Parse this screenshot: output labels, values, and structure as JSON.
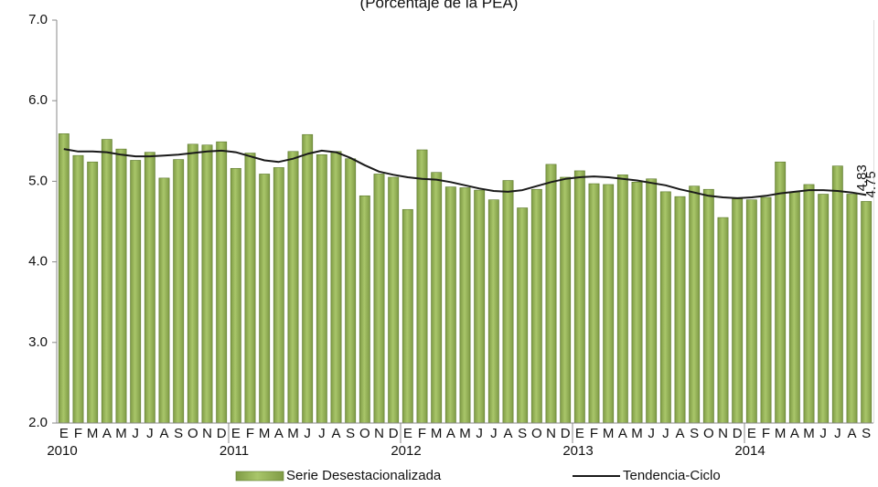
{
  "chart_data": {
    "type": "bar_line",
    "subtitle": "(Porcentaje de la PEA)",
    "categories": [
      "E",
      "F",
      "M",
      "A",
      "M",
      "J",
      "J",
      "A",
      "S",
      "O",
      "N",
      "D",
      "E",
      "F",
      "M",
      "A",
      "M",
      "J",
      "J",
      "A",
      "S",
      "O",
      "N",
      "D",
      "E",
      "F",
      "M",
      "A",
      "M",
      "J",
      "J",
      "A",
      "S",
      "O",
      "N",
      "D",
      "E",
      "F",
      "M",
      "A",
      "M",
      "J",
      "J",
      "A",
      "S",
      "O",
      "N",
      "D",
      "E",
      "F",
      "M",
      "A",
      "M",
      "J",
      "J",
      "A",
      "S"
    ],
    "years": [
      "2010",
      "2011",
      "2012",
      "2013",
      "2014"
    ],
    "series": [
      {
        "name": "Serie Desestacionalizada",
        "type": "bar",
        "color": "#9bbb59",
        "values": [
          5.59,
          5.32,
          5.24,
          5.52,
          5.4,
          5.26,
          5.36,
          5.04,
          5.27,
          5.46,
          5.45,
          5.49,
          5.16,
          5.35,
          5.09,
          5.17,
          5.37,
          5.58,
          5.33,
          5.37,
          5.28,
          4.82,
          5.09,
          5.05,
          4.65,
          5.39,
          5.11,
          4.93,
          4.92,
          4.89,
          4.77,
          5.01,
          4.67,
          4.9,
          5.21,
          5.05,
          5.13,
          4.97,
          4.96,
          5.08,
          4.99,
          5.03,
          4.87,
          4.81,
          4.94,
          4.9,
          4.55,
          4.78,
          4.77,
          4.8,
          5.24,
          4.87,
          4.96,
          4.84,
          5.19,
          4.84,
          4.75
        ]
      },
      {
        "name": "Tendencia-Ciclo",
        "type": "line",
        "color": "#1a1a1a",
        "values": [
          5.4,
          5.37,
          5.37,
          5.36,
          5.33,
          5.31,
          5.31,
          5.32,
          5.33,
          5.35,
          5.37,
          5.38,
          5.36,
          5.31,
          5.26,
          5.24,
          5.28,
          5.34,
          5.38,
          5.36,
          5.29,
          5.2,
          5.12,
          5.08,
          5.05,
          5.03,
          5.02,
          4.99,
          4.95,
          4.91,
          4.88,
          4.87,
          4.89,
          4.94,
          4.99,
          5.03,
          5.05,
          5.06,
          5.05,
          5.03,
          5.01,
          4.98,
          4.95,
          4.9,
          4.86,
          4.82,
          4.8,
          4.79,
          4.8,
          4.82,
          4.85,
          4.87,
          4.89,
          4.89,
          4.88,
          4.86,
          4.83
        ]
      }
    ],
    "ylim": [
      2,
      7
    ],
    "yticks": [
      {
        "value": 2,
        "label": "2.0"
      },
      {
        "value": 3,
        "label": "3.0"
      },
      {
        "value": 4,
        "label": "4.0"
      },
      {
        "value": 5,
        "label": "5.0"
      },
      {
        "value": 6,
        "label": "6.0"
      },
      {
        "value": 7,
        "label": "7.0"
      }
    ],
    "grid": false,
    "legend": "bottom"
  }
}
